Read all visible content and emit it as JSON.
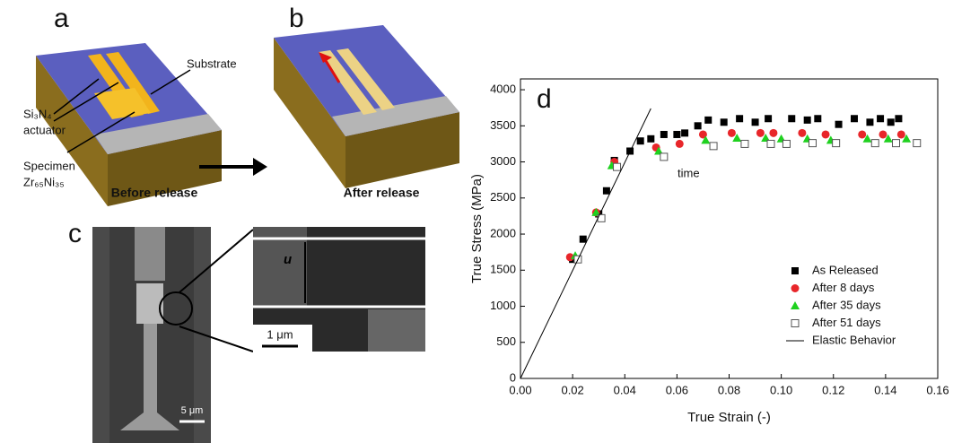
{
  "figure": {
    "a": {
      "label": "a",
      "substrate": "Substrate",
      "actuator1": "Si₃N₄",
      "actuator2": "actuator",
      "specimen1": "Specimen",
      "specimen2": "Zr₆₅Ni₃₅",
      "caption": "Before release"
    },
    "b": {
      "label": "b",
      "caption": "After release"
    },
    "c": {
      "label": "c",
      "scale_big": "5 μm",
      "u": "u",
      "scale_small": "1 μm"
    }
  },
  "chart_data": {
    "type": "scatter",
    "panel_label": "d",
    "annotation": "time",
    "x_label": "True Strain (-)",
    "y_label": "True Stress (MPa)",
    "xlim": [
      0,
      0.16
    ],
    "ylim": [
      0,
      4150
    ],
    "xticks": [
      {
        "value": 0,
        "label": "0.00"
      },
      {
        "value": 0.02,
        "label": "0.02"
      },
      {
        "value": 0.04,
        "label": "0.04"
      },
      {
        "value": 0.06,
        "label": "0.06"
      },
      {
        "value": 0.08,
        "label": "0.08"
      },
      {
        "value": 0.1,
        "label": "0.10"
      },
      {
        "value": 0.12,
        "label": "0.12"
      },
      {
        "value": 0.14,
        "label": "0.14"
      },
      {
        "value": 0.16,
        "label": "0.16"
      }
    ],
    "yticks": [
      0,
      500,
      1000,
      1500,
      2000,
      2500,
      3000,
      3500,
      4000
    ],
    "series": [
      {
        "name": "As Released",
        "color": "#000000",
        "marker": "square",
        "x": [
          0.02,
          0.024,
          0.03,
          0.033,
          0.036,
          0.042,
          0.046,
          0.05,
          0.055,
          0.06,
          0.063,
          0.068,
          0.072,
          0.078,
          0.084,
          0.09,
          0.095,
          0.104,
          0.11,
          0.114,
          0.122,
          0.128,
          0.134,
          0.138,
          0.142,
          0.145
        ],
        "values": [
          1650,
          1930,
          2280,
          2600,
          3020,
          3150,
          3290,
          3320,
          3380,
          3380,
          3400,
          3500,
          3580,
          3550,
          3600,
          3550,
          3600,
          3600,
          3580,
          3600,
          3520,
          3600,
          3550,
          3600,
          3550,
          3600
        ]
      },
      {
        "name": "After 8 days",
        "color": "#e8262a",
        "marker": "circle",
        "x": [
          0.019,
          0.029,
          0.036,
          0.052,
          0.061,
          0.07,
          0.081,
          0.092,
          0.097,
          0.108,
          0.117,
          0.131,
          0.139,
          0.146
        ],
        "values": [
          1680,
          2300,
          3000,
          3200,
          3250,
          3380,
          3400,
          3400,
          3400,
          3400,
          3380,
          3380,
          3380,
          3380
        ]
      },
      {
        "name": "After 35 days",
        "color": "#1fd11f",
        "marker": "triangle",
        "x": [
          0.021,
          0.029,
          0.035,
          0.053,
          0.071,
          0.083,
          0.094,
          0.1,
          0.11,
          0.119,
          0.133,
          0.141,
          0.148
        ],
        "values": [
          1700,
          2300,
          2950,
          3150,
          3300,
          3330,
          3330,
          3320,
          3320,
          3300,
          3320,
          3320,
          3320
        ]
      },
      {
        "name": "After 51 days",
        "color": "#555555",
        "marker": "open-square",
        "x": [
          0.022,
          0.031,
          0.037,
          0.055,
          0.074,
          0.086,
          0.096,
          0.102,
          0.112,
          0.121,
          0.136,
          0.144,
          0.152
        ],
        "values": [
          1650,
          2220,
          2930,
          3070,
          3220,
          3250,
          3250,
          3250,
          3260,
          3260,
          3260,
          3260,
          3260
        ]
      },
      {
        "name": "Elastic Behavior",
        "color": "#000000",
        "marker": "line",
        "x": [
          0,
          0.05
        ],
        "values": [
          0,
          3740
        ]
      }
    ]
  }
}
